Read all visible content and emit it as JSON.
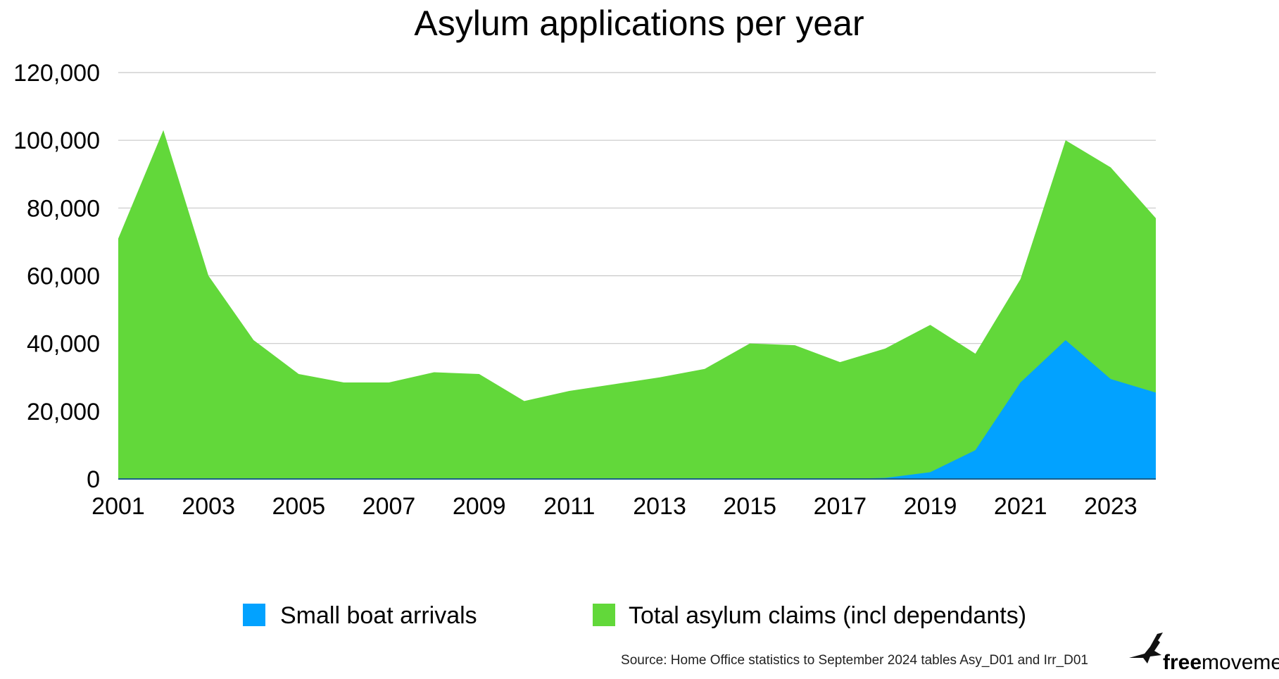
{
  "chart_data": {
    "type": "area",
    "title": "Asylum applications per year",
    "x": [
      2001,
      2002,
      2003,
      2004,
      2005,
      2006,
      2007,
      2008,
      2009,
      2010,
      2011,
      2012,
      2013,
      2014,
      2015,
      2016,
      2017,
      2018,
      2019,
      2020,
      2021,
      2022,
      2023,
      2024
    ],
    "x_tick_labels": [
      "2001",
      "2003",
      "2005",
      "2007",
      "2009",
      "2011",
      "2013",
      "2015",
      "2017",
      "2019",
      "2021",
      "2023"
    ],
    "ylim": [
      0,
      120000
    ],
    "y_tick_labels": [
      "0",
      "20,000",
      "40,000",
      "60,000",
      "80,000",
      "100,000",
      "120,000"
    ],
    "y_ticks": [
      0,
      20000,
      40000,
      60000,
      80000,
      100000,
      120000
    ],
    "grid": true,
    "legend_position": "bottom",
    "series": [
      {
        "name": "Total asylum claims (incl dependants)",
        "color": "#62d83a",
        "values": [
          71000,
          103000,
          60000,
          41000,
          31000,
          28500,
          28500,
          31500,
          31000,
          23000,
          26000,
          28000,
          30000,
          32500,
          40000,
          39500,
          34500,
          38500,
          45500,
          37000,
          59000,
          100000,
          92000,
          77000
        ]
      },
      {
        "name": "Small boat arrivals",
        "color": "#02a2ff",
        "values": [
          0,
          0,
          0,
          0,
          0,
          0,
          0,
          0,
          0,
          0,
          0,
          0,
          0,
          0,
          0,
          0,
          0,
          300,
          2000,
          8500,
          28500,
          41000,
          29500,
          25500
        ]
      }
    ],
    "legend": [
      {
        "label": "Small boat arrivals",
        "color": "#02a2ff"
      },
      {
        "label": "Total asylum claims (incl dependants)",
        "color": "#62d83a"
      }
    ],
    "source": "Source: Home Office statistics to September 2024 tables Asy_D01 and Irr_D01"
  },
  "brand": {
    "name_bold": "free",
    "name_regular": "movement",
    "logo_icon": "bird-icon"
  }
}
